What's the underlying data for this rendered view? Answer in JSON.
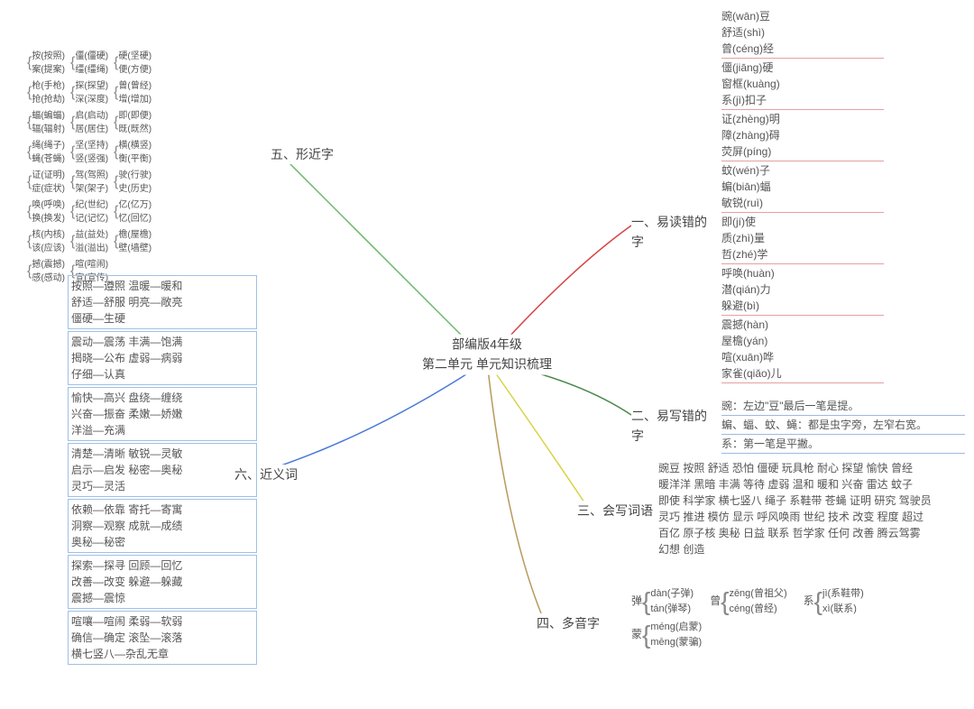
{
  "center": {
    "line1": "部编版4年级",
    "line2": "第二单元 单元知识梳理"
  },
  "branches": {
    "b1": {
      "label": "一、易读错的字",
      "color": "#d84242"
    },
    "b2": {
      "label": "二、易写错的字",
      "color": "#4a8a4a"
    },
    "b3": {
      "label": "三、会写词语",
      "color": "#d8d242"
    },
    "b4": {
      "label": "四、多音字",
      "color": "#b89a5a"
    },
    "b5": {
      "label": "五、形近字",
      "color": "#6ab86a"
    },
    "b6": {
      "label": "六、近义词",
      "color": "#4a7ad8"
    }
  },
  "section1": {
    "groups": [
      [
        "豌(wān)豆",
        "舒适(shì)",
        "曾(céng)经"
      ],
      [
        "僵(jiāng)硬",
        "窗框(kuàng)",
        "系(jì)扣子"
      ],
      [
        "证(zhèng)明",
        "障(zhàng)碍",
        "荧屏(píng)"
      ],
      [
        "蚊(wén)子",
        "蝙(biān)蝠",
        "敏锐(ruì)"
      ],
      [
        "即(jí)使",
        "质(zhì)量",
        "哲(zhé)学"
      ],
      [
        "呼唤(huàn)",
        "潜(qián)力",
        "躲避(bì)"
      ],
      [
        "震撼(hàn)",
        "屋檐(yán)",
        "喧(xuān)哗",
        "家雀(qiǎo)儿"
      ]
    ]
  },
  "section2": {
    "lines": [
      "豌：左边\"豆\"最后一笔是提。",
      "蝙、蝠、蚊、蝇：都是虫字旁，左窄右宽。",
      "系：第一笔是平撇。"
    ]
  },
  "section3": {
    "lines": [
      "豌豆 按照 舒适 恐怕 僵硬 玩具枪 耐心 探望 愉快 曾经",
      "暖洋洋 黑暗 丰满 等待 虚弱 温和 暖和 兴奋 雷达 蚊子",
      "即使 科学家 横七竖八 绳子 系鞋带 苍蝇 证明 研究 驾驶员",
      "灵巧 推进 模仿 显示 呼风唤雨 世纪 技术 改变 程度 超过",
      "百亿 原子核 奥秘 日益 联系 哲学家 任何 改善 腾云驾雾",
      "幻想 创造"
    ]
  },
  "section4": {
    "pairs": [
      {
        "ch": "弹",
        "readings": [
          "dàn(子弹)",
          "tán(弹琴)"
        ]
      },
      {
        "ch": "曾",
        "readings": [
          "zēng(曾祖父)",
          "céng(曾经)"
        ]
      },
      {
        "ch": "系",
        "readings": [
          "jì(系鞋带)",
          "xì(联系)"
        ]
      },
      {
        "ch": "蒙",
        "readings": [
          "méng(启蒙)",
          "mēng(蒙骗)"
        ]
      }
    ]
  },
  "section5": {
    "cols": [
      [
        [
          "按(按照)",
          "案(提案)"
        ],
        [
          "枪(手枪)",
          "抢(抢劫)"
        ],
        [
          "蝠(蝙蝠)",
          "辐(辐射)"
        ],
        [
          "绳(绳子)",
          "蝇(苍蝇)"
        ],
        [
          "证(证明)",
          "症(症状)"
        ],
        [
          "唤(呼唤)",
          "换(换发)"
        ],
        [
          "核(内核)",
          "该(应该)"
        ],
        [
          "撼(震撼)",
          "感(感动)"
        ]
      ],
      [
        [
          "僵(僵硬)",
          "缰(缰绳)"
        ],
        [
          "探(探望)",
          "深(深度)"
        ],
        [
          "启(启动)",
          "居(居住)"
        ],
        [
          "坚(坚持)",
          "竖(竖强)"
        ],
        [
          "驾(驾照)",
          "架(架子)"
        ],
        [
          "纪(世纪)",
          "记(记忆)"
        ],
        [
          "益(益处)",
          "溢(溢出)"
        ],
        [
          "喧(喧闹)",
          "宣(宣传)"
        ]
      ],
      [
        [
          "硬(坚硬)",
          "便(方便)"
        ],
        [
          "曾(曾经)",
          "增(增加)"
        ],
        [
          "即(即便)",
          "既(既然)"
        ],
        [
          "横(横竖)",
          "衡(平衡)"
        ],
        [
          "驶(行驶)",
          "史(历史)"
        ],
        [
          "亿(亿万)",
          "忆(回忆)"
        ],
        [
          "檐(屋檐)",
          "壁(墙壁)"
        ]
      ]
    ]
  },
  "section6": {
    "groups": [
      [
        "按照—遵照 温暖—暖和",
        "舒适—舒服 明亮—敞亮",
        "僵硬—生硬"
      ],
      [
        "震动—震荡 丰满—饱满",
        "揭晓—公布 虚弱—病弱",
        "仔细—认真"
      ],
      [
        "愉快—高兴 盘绕—缠绕",
        "兴奋—振奋 柔嫩—娇嫩",
        "洋溢—充满"
      ],
      [
        "清楚—清晰 敏锐—灵敏",
        "启示—启发 秘密—奥秘",
        "灵巧—灵活"
      ],
      [
        "依赖—依靠 寄托—寄寓",
        "洞察—观察 成就—成绩",
        "奥秘—秘密"
      ],
      [
        "探索—探寻 回顾—回忆",
        "改善—改变 躲避—躲藏",
        "震撼—震惊"
      ],
      [
        "喧嚷—喧闹 柔弱—软弱",
        "确信—确定 滚坠—滚落",
        "横七竖八—杂乱无章"
      ]
    ]
  }
}
